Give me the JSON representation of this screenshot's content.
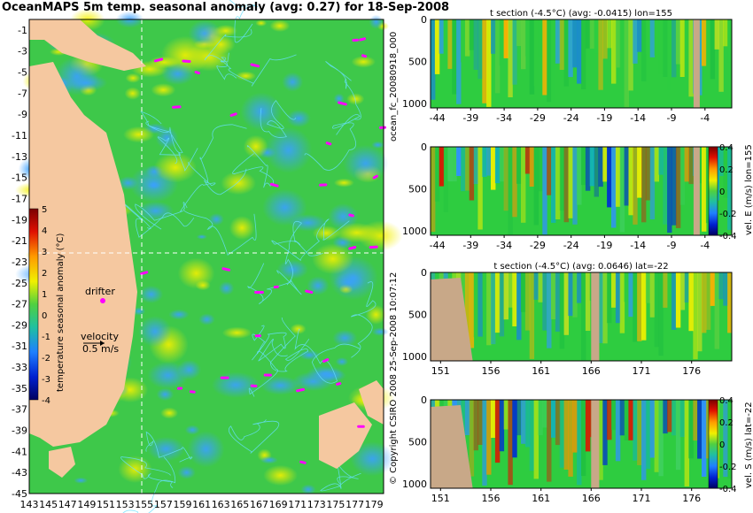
{
  "chart_data": [
    {
      "type": "heatmap",
      "title": "OceanMAPS 5m temp. seasonal anomaly (avg: 0.27) for 18-Sep-2008",
      "xlabel": "",
      "ylabel": "",
      "x_ticks": [
        "143",
        "145",
        "147",
        "149",
        "151",
        "153",
        "155",
        "157",
        "159",
        "161",
        "163",
        "165",
        "167",
        "169",
        "171",
        "173",
        "175",
        "177",
        "179"
      ],
      "y_ticks": [
        "-1",
        "-3",
        "-5",
        "-7",
        "-9",
        "-11",
        "-13",
        "-15",
        "-17",
        "-19",
        "-21",
        "-23",
        "-25",
        "-27",
        "-29",
        "-31",
        "-33",
        "-35",
        "-37",
        "-39",
        "-41",
        "-43",
        "-45"
      ],
      "xlim": [
        143,
        180
      ],
      "ylim": [
        -45,
        0
      ],
      "colorbar": {
        "label": "temperature seasonal anomaly (°C)",
        "ticks": [
          "5",
          "4",
          "3",
          "2",
          "1",
          "0",
          "-1",
          "-2",
          "-3",
          "-4"
        ],
        "range": [
          -4,
          5
        ]
      },
      "annotations": {
        "drifter": "drifter",
        "velocity_title": "velocity",
        "velocity_value": "0.5 m/s"
      },
      "sections": {
        "lon": 155,
        "lat": -22
      }
    },
    {
      "type": "heatmap",
      "title": "t section (-4.5°C) (avg: -0.0415) lon=155",
      "x_ticks": [
        "-44",
        "-39",
        "-34",
        "-29",
        "-24",
        "-19",
        "-14",
        "-9",
        "-4"
      ],
      "y_ticks": [
        "0",
        "500",
        "1000"
      ],
      "xlim": [
        -45,
        0
      ],
      "ylim": [
        1050,
        0
      ]
    },
    {
      "type": "heatmap",
      "title": "",
      "x_ticks": [
        "-44",
        "-39",
        "-34",
        "-29",
        "-24",
        "-19",
        "-14",
        "-9",
        "-4"
      ],
      "y_ticks": [
        "0",
        "500",
        "1000"
      ],
      "xlim": [
        -45,
        0
      ],
      "ylim": [
        1050,
        0
      ],
      "colorbar": {
        "label": "vel. E (m/s) lon=155",
        "ticks": [
          "0.4",
          "0.2",
          "0",
          "-0.2",
          "-0.4"
        ],
        "range": [
          -0.4,
          0.4
        ]
      }
    },
    {
      "type": "heatmap",
      "title": "t section (-4.5°C) (avg: 0.0646) lat=-22",
      "x_ticks": [
        "151",
        "156",
        "161",
        "166",
        "171",
        "176"
      ],
      "y_ticks": [
        "0",
        "500",
        "1000"
      ],
      "xlim": [
        150,
        180
      ],
      "ylim": [
        1050,
        0
      ]
    },
    {
      "type": "heatmap",
      "title": "",
      "x_ticks": [
        "151",
        "156",
        "161",
        "166",
        "171",
        "176"
      ],
      "y_ticks": [
        "0",
        "500",
        "1000"
      ],
      "xlim": [
        150,
        180
      ],
      "ylim": [
        1050,
        0
      ],
      "colorbar": {
        "label": "vel. S (m/s) lat=-22",
        "ticks": [
          "0.4",
          "0.2",
          "0",
          "-0.2",
          "-0.4"
        ],
        "range": [
          -0.4,
          0.4
        ]
      }
    }
  ],
  "side_text": {
    "run_id": "ocean_fc_20080918_000",
    "date_stamp": "25-Sep-2008 10:07:12",
    "copyright": "© Copyright CSIRO 2008"
  },
  "colors": {
    "land": "#f5c8a0",
    "ocean_green": "#3ec84a",
    "section_land": "#c8a888",
    "contour": "#66e0ff",
    "magenta": "#ff00ff"
  }
}
